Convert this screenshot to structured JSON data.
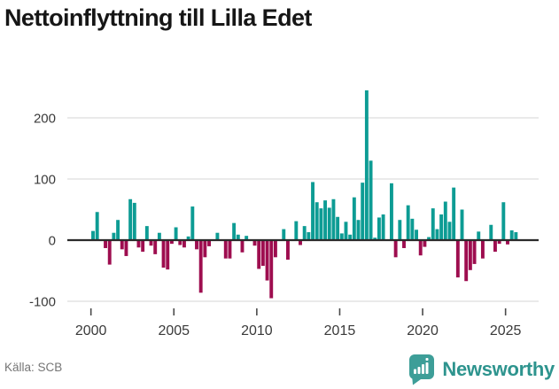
{
  "title": "Nettoinflyttning till Lilla Edet",
  "source": "Källa: SCB",
  "logo": {
    "name": "Newsworthy"
  },
  "colors": {
    "positive_bar": "#0d9c94",
    "negative_bar": "#9e0d4f",
    "gridline": "#e3e3e3",
    "zero_axis": "#2b2b2b",
    "tick_text": "#3a3a3a",
    "logo_badge": "#3d9e98",
    "logo_text": "#2e948e",
    "source_text": "#757575"
  },
  "chart_data": {
    "type": "bar",
    "title": "Nettoinflyttning till Lilla Edet",
    "x_unit": "quarter",
    "start_period": "2000-Q1",
    "end_period": "2025-Q3",
    "values": [
      15,
      46,
      0,
      -13,
      -40,
      12,
      33,
      -15,
      -26,
      67,
      61,
      -12,
      -19,
      23,
      -9,
      -23,
      12,
      -45,
      -48,
      -6,
      21,
      -8,
      -12,
      6,
      55,
      -15,
      -86,
      -28,
      -10,
      0,
      12,
      0,
      -30,
      -30,
      28,
      9,
      -20,
      7,
      0,
      -9,
      -47,
      -42,
      -66,
      -95,
      -28,
      0,
      18,
      -32,
      0,
      31,
      -8,
      23,
      13,
      95,
      62,
      52,
      65,
      53,
      67,
      38,
      11,
      30,
      9,
      70,
      33,
      94,
      245,
      130,
      4,
      37,
      42,
      0,
      93,
      -28,
      33,
      -13,
      57,
      35,
      17,
      -25,
      -11,
      5,
      52,
      18,
      42,
      63,
      30,
      86,
      -61,
      50,
      -67,
      -49,
      -39,
      14,
      -30,
      0,
      25,
      -19,
      -6,
      62,
      -7,
      16,
      13
    ],
    "y_ticks": [
      -100,
      0,
      100,
      200
    ],
    "y_tick_labels": [
      "-100",
      "0",
      "100",
      "200"
    ],
    "x_ticks": [
      2000,
      2005,
      2010,
      2015,
      2020,
      2025
    ],
    "ylim": [
      -115,
      260
    ],
    "grid": true,
    "legend": "none"
  }
}
